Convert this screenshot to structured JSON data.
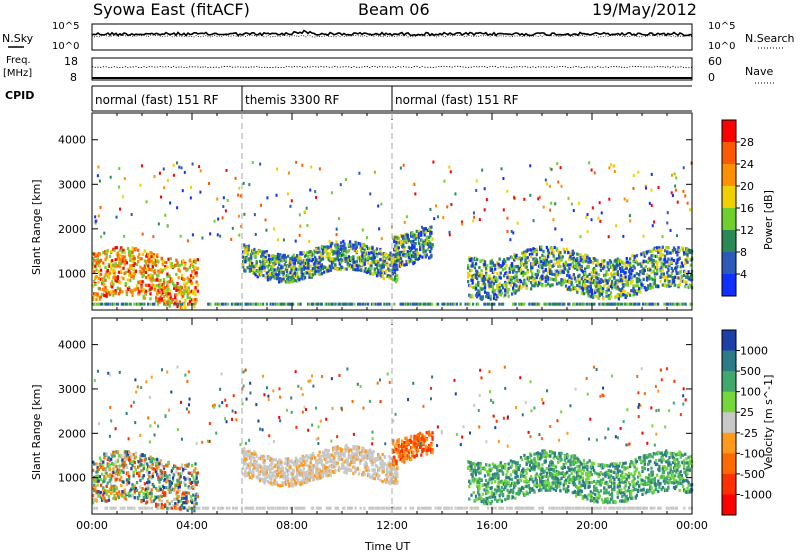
{
  "header": {
    "title": "Syowa East (fitACF)",
    "beam": "Beam 06",
    "date": "19/May/2012"
  },
  "noise_panel": {
    "left_label": "N.Sky",
    "right_label": "N.Search",
    "tick_top": "10^5",
    "tick_bottom": "10^0",
    "right_tick_top": "10^5",
    "right_tick_bottom": "10^0"
  },
  "freq_panel": {
    "left_label_1": "Freq.",
    "left_label_2": "[MHz]",
    "right_label": "Nave",
    "left_ticks": [
      "18",
      "8"
    ],
    "right_ticks": [
      "60",
      "0"
    ]
  },
  "cpid_panel": {
    "label": "CPID",
    "segments": [
      {
        "label": "normal (fast) 151 RF",
        "start": 0,
        "end": 6
      },
      {
        "label": "themis 3300 RF",
        "start": 6,
        "end": 12
      },
      {
        "label": "normal (fast) 151 RF",
        "start": 12,
        "end": 24
      }
    ]
  },
  "colorbars": {
    "power": {
      "label": "Power [dB]",
      "ticks": [
        "28",
        "24",
        "20",
        "16",
        "12",
        "8",
        "4"
      ],
      "colors": [
        "#ff0000",
        "#ff5a00",
        "#ff9000",
        "#f0d000",
        "#6ecf2d",
        "#2a8a55",
        "#2c5ab8",
        "#1030ff"
      ]
    },
    "velocity": {
      "label": "Velocity [m s^-1]",
      "ticks": [
        "1000",
        "500",
        "100",
        "25",
        "-25",
        "-100",
        "-500",
        "-1000"
      ],
      "colors": [
        "#1d3fa8",
        "#2e7b88",
        "#3fa86a",
        "#74d73b",
        "#c8c8c8",
        "#ff9a1a",
        "#ff6a00",
        "#ff3000",
        "#ff0000"
      ]
    }
  },
  "chart_data": [
    {
      "type": "heatmap",
      "panel": "power",
      "ylabel": "Slant Range [km]",
      "y_ticks": [
        "1000",
        "2000",
        "3000",
        "4000"
      ],
      "ylim": [
        180,
        4600
      ],
      "xlim": [
        0,
        24
      ],
      "colorbar_label": "Power [dB]",
      "echo_regions": [
        {
          "t0": 0.0,
          "t1": 4.2,
          "r0": 300,
          "r1": 1500,
          "level": "high"
        },
        {
          "t0": 6.0,
          "t1": 12.2,
          "r0": 900,
          "r1": 1600,
          "level": "medium"
        },
        {
          "t0": 12.0,
          "t1": 13.6,
          "r0": 1200,
          "r1": 2000,
          "level": "medium"
        },
        {
          "t0": 15.0,
          "t1": 24.0,
          "r0": 500,
          "r1": 1500,
          "level": "medium"
        }
      ]
    },
    {
      "type": "heatmap",
      "panel": "velocity",
      "ylabel": "Slant Range [km]",
      "y_ticks": [
        "1000",
        "2000",
        "3000",
        "4000"
      ],
      "ylim": [
        180,
        4600
      ],
      "xlim": [
        0,
        24
      ],
      "xlabel": "Time UT",
      "x_ticks": [
        "00:00",
        "04:00",
        "08:00",
        "12:00",
        "16:00",
        "20:00",
        "00:00"
      ],
      "colorbar_label": "Velocity [m s^-1]",
      "echo_regions": [
        {
          "t0": 0.0,
          "t1": 4.2,
          "r0": 300,
          "r1": 1500,
          "level": "mixed"
        },
        {
          "t0": 6.0,
          "t1": 12.2,
          "r0": 900,
          "r1": 1600,
          "level": "near-zero"
        },
        {
          "t0": 12.0,
          "t1": 13.6,
          "r0": 1400,
          "r1": 2000,
          "level": "negative"
        },
        {
          "t0": 15.0,
          "t1": 24.0,
          "r0": 500,
          "r1": 1500,
          "level": "positive"
        }
      ]
    }
  ]
}
